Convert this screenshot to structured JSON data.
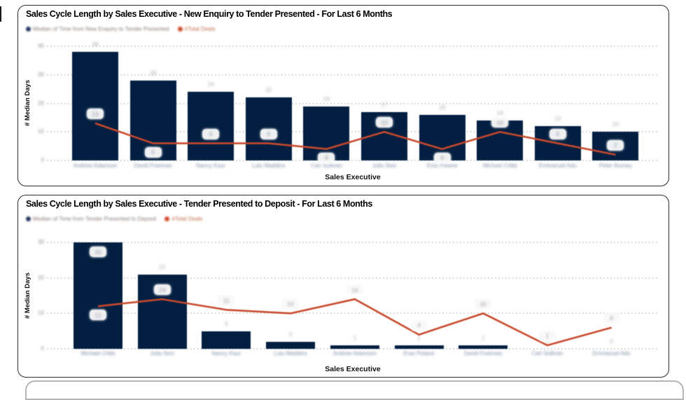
{
  "page": {
    "background": "#ffffff"
  },
  "cards": [
    {
      "title": "Sales Cycle Length by Sales Executive - New Enquiry to Tender Presented - For Last 6 Months",
      "legend": [
        {
          "label": "Median of Time from New Enquiry to Tender Presented",
          "color": "#25355e",
          "text_color": "#8b7f78"
        },
        {
          "label": "#Total Deals",
          "color": "#cf4b2e",
          "text_color": "#c0704f"
        }
      ],
      "x_axis_title": "Sales Executive",
      "y_axis_title": "# Median Days"
    },
    {
      "title": "Sales Cycle Length by Sales Executive - Tender Presented to Deposit - For Last 6 Months",
      "legend": [
        {
          "label": "Median of Time from Tender Presented to Deposit",
          "color": "#25355e",
          "text_color": "#8b7f78"
        },
        {
          "label": "#Total Deals",
          "color": "#cf4b2e",
          "text_color": "#c0704f"
        }
      ],
      "x_axis_title": "Sales Executive",
      "y_axis_title": "# Median Days"
    }
  ],
  "chart_data": [
    {
      "type": "bar",
      "subtype": "column+line combo",
      "title": "Sales Cycle Length by Sales Executive - New Enquiry to Tender Presented - For Last 6 Months",
      "categories": [
        "Andrew Adamson",
        "David Freeman",
        "Nancy Kaur",
        "Lulu Maddins",
        "Carl Sullivan",
        "Julia Sion",
        "Eras Petane",
        "Michael Cribb",
        "Emmanuel Adu",
        "Peter Burney"
      ],
      "series": [
        {
          "name": "Median of Time from New Enquiry to Tender Presented",
          "type": "bar",
          "color": "#021f42",
          "values": [
            38,
            28,
            24,
            22,
            19,
            17,
            16,
            14,
            12,
            10
          ]
        },
        {
          "name": "#Total Deals",
          "type": "line",
          "color": "#c8492c",
          "values": [
            13,
            6,
            6,
            6,
            4,
            10,
            4,
            10,
            6,
            2
          ]
        }
      ],
      "xlabel": "Sales Executive",
      "ylabel": "# Median Days",
      "ylim": [
        0,
        40
      ],
      "yticks": [
        0,
        10,
        20,
        30,
        40
      ],
      "grid": "horizontal-dotted",
      "legend_position": "top-left",
      "line_label_pos": [
        "above",
        "below",
        "above",
        "above",
        "below",
        "above",
        "below",
        "above",
        "above",
        "above"
      ],
      "bar_label_pos": [
        "above",
        "above",
        "above",
        "above",
        "above",
        "above",
        "above",
        "above",
        "above",
        "above"
      ],
      "labels_blurred": true
    },
    {
      "type": "bar",
      "subtype": "column+line combo",
      "title": "Sales Cycle Length by Sales Executive - Tender Presented to Deposit - For Last 6 Months",
      "categories": [
        "Michael Cribb",
        "Julia Sion",
        "Nancy Kaur",
        "Lulu Maddins",
        "Andrew Adamson",
        "Eras Petane",
        "David Freeman",
        "Carl Sullivan",
        "Emmanuel Adu"
      ],
      "series": [
        {
          "name": "Median of Time from Tender Presented to Deposit",
          "type": "bar",
          "color": "#021f42",
          "values": [
            30,
            21,
            5,
            2,
            1,
            1,
            1,
            0,
            0
          ]
        },
        {
          "name": "#Total Deals",
          "type": "line",
          "color": "#c8492c",
          "values": [
            12,
            14,
            11,
            10,
            14,
            4,
            10,
            1,
            6
          ]
        }
      ],
      "xlabel": "Sales Executive",
      "ylabel": "# Median Days",
      "ylim": [
        0,
        30
      ],
      "yticks": [
        0,
        10,
        20,
        30
      ],
      "grid": "horizontal-dotted",
      "legend_position": "top-left",
      "line_label_pos": [
        "below",
        "above",
        "above",
        "above",
        "above",
        "above",
        "above",
        "above",
        "above"
      ],
      "bar_label_pos": [
        "inside",
        "above",
        "above",
        "above",
        "above",
        "above",
        "above",
        "above",
        "above"
      ],
      "labels_blurred": true
    }
  ]
}
